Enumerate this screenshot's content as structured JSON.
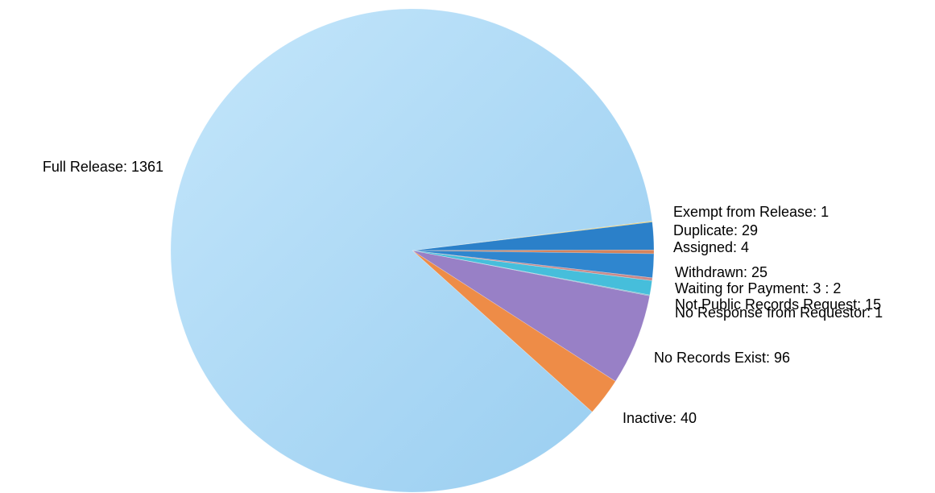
{
  "chart_data": {
    "type": "pie",
    "title": "",
    "start_angle_deg": -7,
    "direction": "clockwise",
    "legend": "none",
    "slices": [
      {
        "label": "Exempt from Release: 1",
        "name": "Exempt from Release",
        "value": 1,
        "color": "#e6c24a"
      },
      {
        "label": "Duplicate: 29",
        "name": "Duplicate",
        "value": 29,
        "color": "#2b80c9"
      },
      {
        "label": "Assigned: 4",
        "name": "Assigned",
        "value": 4,
        "color": "#d6845c"
      },
      {
        "label": "Withdrawn: 25",
        "name": "Withdrawn",
        "value": 25,
        "color": "#2f86cf"
      },
      {
        "label": "Waiting for Payment: 3 : 2",
        "name": "Waiting for Payment",
        "value": 3,
        "color": "#c98a8a"
      },
      {
        "label": "Not Public Records Request: 15",
        "name": "Not Public Records Request",
        "value": 15,
        "color": "#46bedb"
      },
      {
        "label": "No Response from Requestor: 1",
        "name": "No Response from Requestor",
        "value": 1,
        "color": "#7fb7c8"
      },
      {
        "label": "No Records Exist: 96",
        "name": "No Records Exist",
        "value": 96,
        "color": "#9880c6"
      },
      {
        "label": "Inactive: 40",
        "name": "Inactive",
        "value": 40,
        "color": "#ee8c47"
      },
      {
        "label": "Full Release: 1361",
        "name": "Full Release",
        "value": 1361,
        "color": "#a9d7f5"
      }
    ]
  }
}
